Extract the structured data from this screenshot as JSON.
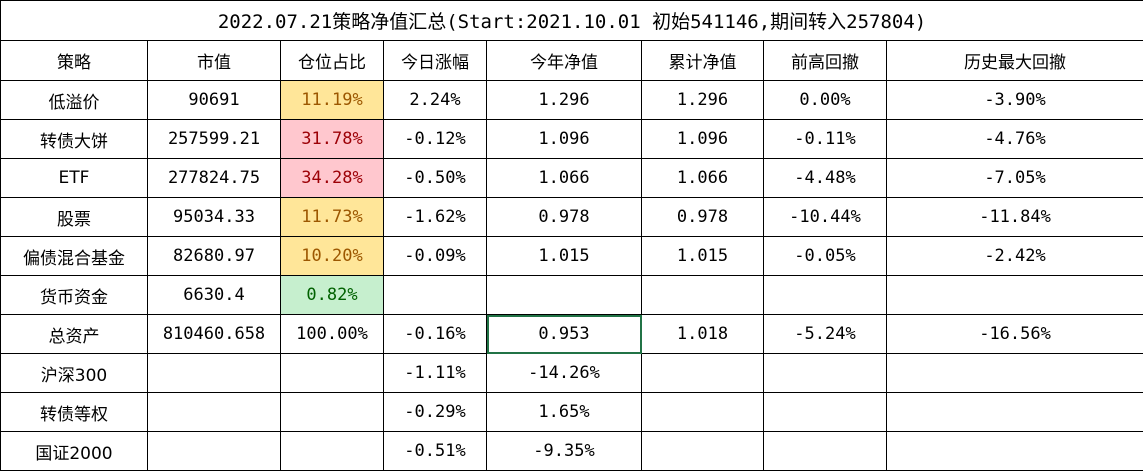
{
  "colors": {
    "yellow": "#ffe699",
    "red": "#ffc7ce",
    "green": "#c6efce",
    "red_text": "#9c0006",
    "green_text": "#006100",
    "yellow_text": "#9c5700",
    "selection": "#217346"
  },
  "title": "2022.07.21策略净值汇总(Start:2021.10.01 初始541146,期间转入257804)",
  "headers": [
    "策略",
    "市值",
    "仓位占比",
    "今日涨幅",
    "今年净值",
    "累计净值",
    "前高回撤",
    "历史最大回撤"
  ],
  "rows": [
    {
      "cells": [
        "低溢价",
        "90691",
        "11.19%",
        "2.24%",
        "1.296",
        "1.296",
        "0.00%",
        "-3.90%"
      ],
      "fill": "yellow"
    },
    {
      "cells": [
        "转债大饼",
        "257599.21",
        "31.78%",
        "-0.12%",
        "1.096",
        "1.096",
        "-0.11%",
        "-4.76%"
      ],
      "fill": "red"
    },
    {
      "cells": [
        "ETF",
        "277824.75",
        "34.28%",
        "-0.50%",
        "1.066",
        "1.066",
        "-4.48%",
        "-7.05%"
      ],
      "fill": "red"
    },
    {
      "cells": [
        "股票",
        "95034.33",
        "11.73%",
        "-1.62%",
        "0.978",
        "0.978",
        "-10.44%",
        "-11.84%"
      ],
      "fill": "yellow"
    },
    {
      "cells": [
        "偏债混合基金",
        "82680.97",
        "10.20%",
        "-0.09%",
        "1.015",
        "1.015",
        "-0.05%",
        "-2.42%"
      ],
      "fill": "yellow"
    },
    {
      "cells": [
        "货币资金",
        "6630.4",
        "0.82%",
        "",
        "",
        "",
        "",
        ""
      ],
      "fill": "green"
    },
    {
      "cells": [
        "总资产",
        "810460.658",
        "100.00%",
        "-0.16%",
        "0.953",
        "1.018",
        "-5.24%",
        "-16.56%"
      ],
      "fill": "",
      "selected_col": 4
    },
    {
      "cells": [
        "沪深300",
        "",
        "",
        "-1.11%",
        "-14.26%",
        "",
        "",
        ""
      ],
      "fill": ""
    },
    {
      "cells": [
        "转债等权",
        "",
        "",
        "-0.29%",
        "1.65%",
        "",
        "",
        ""
      ],
      "fill": ""
    },
    {
      "cells": [
        "国证2000",
        "",
        "",
        "-0.51%",
        "-9.35%",
        "",
        "",
        ""
      ],
      "fill": ""
    }
  ]
}
